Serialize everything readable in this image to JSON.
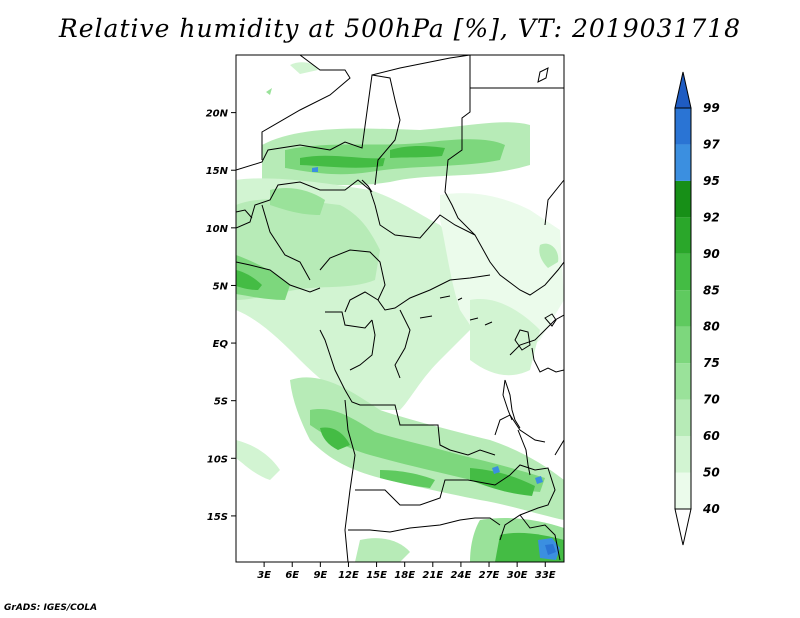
{
  "title": "Relative humidity at 500hPa [%], VT: 2019031718",
  "footer": "GrADS: IGES/COLA",
  "map": {
    "lon_range": [
      0,
      35
    ],
    "lat_range": [
      -19,
      25
    ],
    "x_tick_labels": [
      "3E",
      "6E",
      "9E",
      "12E",
      "15E",
      "18E",
      "21E",
      "24E",
      "27E",
      "30E",
      "33E"
    ],
    "x_tick_values": [
      3,
      6,
      9,
      12,
      15,
      18,
      21,
      24,
      27,
      30,
      33
    ],
    "y_tick_labels": [
      "20N",
      "15N",
      "10N",
      "5N",
      "EQ",
      "5S",
      "10S",
      "15S"
    ],
    "y_tick_values": [
      20,
      15,
      10,
      5,
      0,
      -5,
      -10,
      -15
    ]
  },
  "colorbar": {
    "labels": [
      "40",
      "50",
      "60",
      "70",
      "75",
      "80",
      "85",
      "90",
      "92",
      "95",
      "97",
      "99"
    ],
    "colors": [
      "#ebfbeb",
      "#d2f4d2",
      "#b7ebb7",
      "#9ae29a",
      "#7dd77d",
      "#5fca5f",
      "#44bc44",
      "#2aa72a",
      "#178f17",
      "#3b8fe0",
      "#2a74d4",
      "#1f5cc2"
    ]
  }
}
